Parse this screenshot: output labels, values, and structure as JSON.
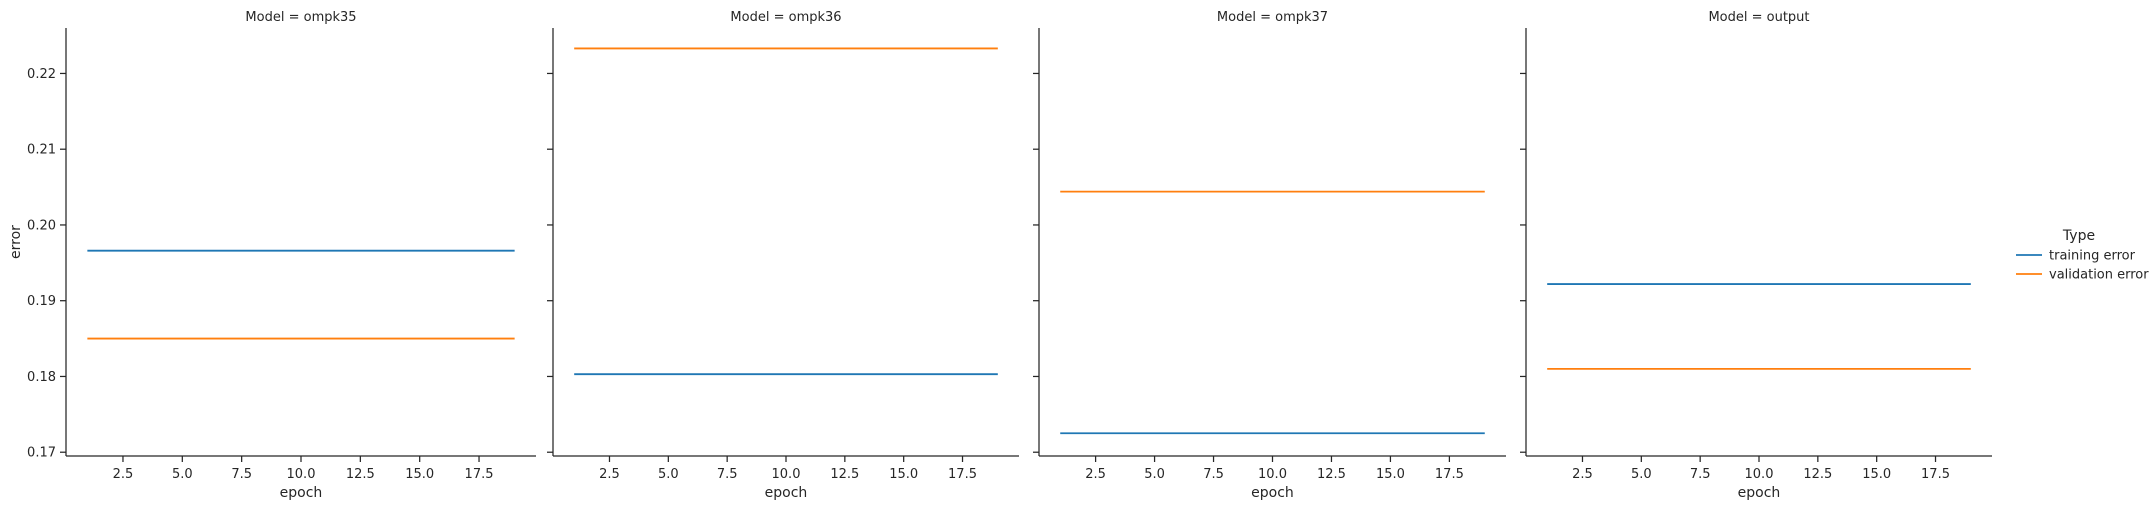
{
  "chart_data": {
    "type": "line",
    "ylabel": "error",
    "xlabel": "epoch",
    "ylim": [
      0.1695,
      0.226
    ],
    "xlim": [
      0.1,
      19.9
    ],
    "x_ticks": [
      2.5,
      5.0,
      7.5,
      10.0,
      12.5,
      15.0,
      17.5
    ],
    "x_tick_labels": [
      "2.5",
      "5.0",
      "7.5",
      "10.0",
      "12.5",
      "15.0",
      "17.5"
    ],
    "y_ticks": [
      0.17,
      0.18,
      0.19,
      0.2,
      0.21,
      0.22
    ],
    "y_tick_labels": [
      "0.17",
      "0.18",
      "0.19",
      "0.20",
      "0.21",
      "0.22"
    ],
    "x_range": [
      1,
      19
    ],
    "legend": {
      "title": "Type",
      "placement": "right",
      "entries": [
        {
          "name": "training error",
          "color": "#1f77b4"
        },
        {
          "name": "validation error",
          "color": "#ff7f0e"
        }
      ]
    },
    "facets": [
      {
        "title": "Model = ompk35",
        "series": [
          {
            "name": "training error",
            "x": [
              1,
              19
            ],
            "y": [
              0.1966,
              0.1966
            ]
          },
          {
            "name": "validation error",
            "x": [
              1,
              19
            ],
            "y": [
              0.185,
              0.185
            ]
          }
        ]
      },
      {
        "title": "Model = ompk36",
        "series": [
          {
            "name": "training error",
            "x": [
              1,
              19
            ],
            "y": [
              0.1803,
              0.1803
            ]
          },
          {
            "name": "validation error",
            "x": [
              1,
              19
            ],
            "y": [
              0.2233,
              0.2233
            ]
          }
        ]
      },
      {
        "title": "Model = ompk37",
        "series": [
          {
            "name": "training error",
            "x": [
              1,
              19
            ],
            "y": [
              0.1725,
              0.1725
            ]
          },
          {
            "name": "validation error",
            "x": [
              1,
              19
            ],
            "y": [
              0.2044,
              0.2044
            ]
          }
        ]
      },
      {
        "title": "Model = output",
        "series": [
          {
            "name": "training error",
            "x": [
              1,
              19
            ],
            "y": [
              0.1922,
              0.1922
            ]
          },
          {
            "name": "validation error",
            "x": [
              1,
              19
            ],
            "y": [
              0.181,
              0.181
            ]
          }
        ]
      }
    ]
  }
}
